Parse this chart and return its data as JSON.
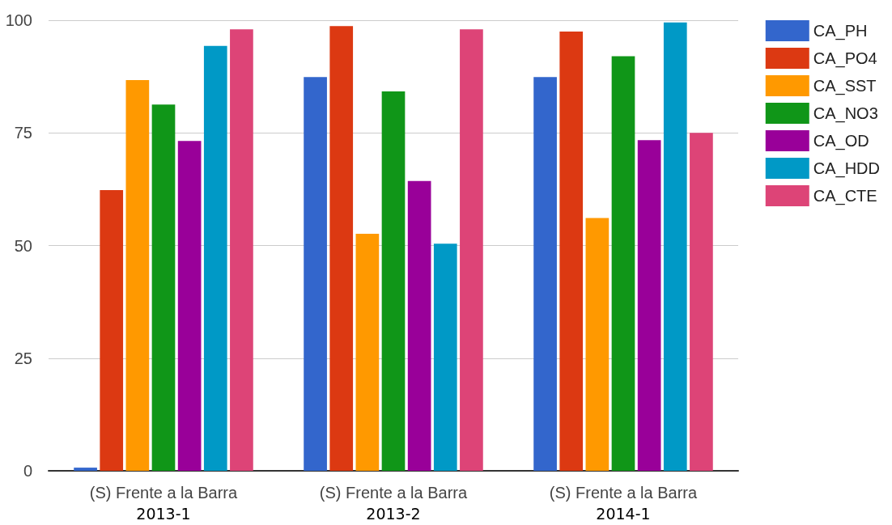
{
  "chart_data": {
    "type": "bar",
    "categories": [
      "(S) Frente a la Barra\n2013-1",
      "(S) Frente a la Barra\n2013-2",
      "(S) Frente a la Barra\n2014-1"
    ],
    "series": [
      {
        "name": "CA_PH",
        "color": "#3366cc",
        "values": [
          0.7,
          87.4,
          87.4
        ]
      },
      {
        "name": "CA_PO4",
        "color": "#dc3912",
        "values": [
          62.3,
          98.7,
          97.5
        ]
      },
      {
        "name": "CA_SST",
        "color": "#ff9900",
        "values": [
          86.7,
          52.6,
          56.1
        ]
      },
      {
        "name": "CA_NO3",
        "color": "#109618",
        "values": [
          81.3,
          84.2,
          92
        ]
      },
      {
        "name": "CA_OD",
        "color": "#990099",
        "values": [
          73.2,
          64.3,
          73.4
        ]
      },
      {
        "name": "CA_HDD",
        "color": "#0099c6",
        "values": [
          94.3,
          50.4,
          99.5
        ]
      },
      {
        "name": "CA_CTE",
        "color": "#dd4477",
        "values": [
          98,
          98,
          75
        ]
      }
    ],
    "ylim": [
      0,
      100
    ],
    "yticks": [
      0,
      25,
      50,
      75,
      100
    ],
    "grid": "y",
    "legend": "right"
  }
}
